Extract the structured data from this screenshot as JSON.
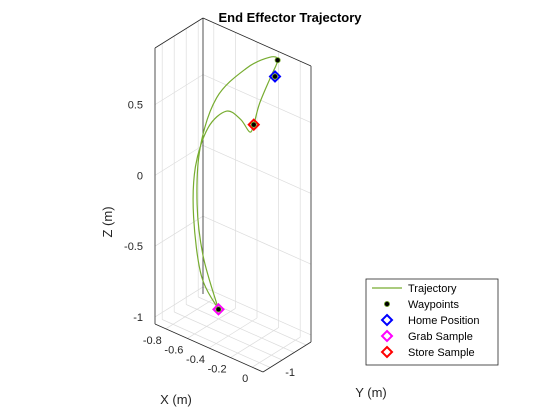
{
  "chart_data": {
    "type": "line3d",
    "title": "End Effector Trajectory",
    "xlabel": "X (m)",
    "ylabel": "Y (m)",
    "zlabel": "Z (m)",
    "xlim": [
      -0.9,
      0.1
    ],
    "ylim": [
      -1.8,
      0.2
    ],
    "zlim": [
      -1.05,
      0.9
    ],
    "xticks": [
      -0.8,
      -0.6,
      -0.4,
      -0.2,
      0
    ],
    "xtick_labels": [
      "-0.8",
      "-0.6",
      "-0.4",
      "-0.2",
      "0"
    ],
    "yticks": [
      -1
    ],
    "ytick_labels": [
      "-1"
    ],
    "zticks": [
      -1,
      -0.5,
      0,
      0.5
    ],
    "ztick_labels": [
      "-1",
      "-0.5",
      "0",
      "0.5"
    ],
    "grid": true,
    "legend_position": "bottom-right",
    "legend": [
      "Trajectory",
      "Waypoints",
      "Home Position",
      "Grab Sample",
      "Store Sample"
    ],
    "colors": {
      "trajectory": "#77ac30",
      "waypoints": "#000000",
      "home": "#0000ff",
      "grab": "#ff00ff",
      "store": "#ff0000"
    },
    "trajectory": [
      {
        "x": -0.61,
        "y": -0.46,
        "z": -0.99
      },
      {
        "x": -0.71,
        "y": -0.72,
        "z": -0.76
      },
      {
        "x": -0.76,
        "y": -0.82,
        "z": -0.35
      },
      {
        "x": -0.73,
        "y": -0.88,
        "z": 0.02
      },
      {
        "x": -0.62,
        "y": -0.85,
        "z": 0.33
      },
      {
        "x": -0.47,
        "y": -0.77,
        "z": 0.49
      },
      {
        "x": -0.36,
        "y": -0.67,
        "z": 0.46
      },
      {
        "x": -0.31,
        "y": -0.51,
        "z": 0.37
      },
      {
        "x": -0.29,
        "y": -0.43,
        "z": 0.42
      },
      {
        "x": -0.28,
        "y": -0.24,
        "z": 0.55
      },
      {
        "x": -0.23,
        "y": 0.0,
        "z": 0.73
      },
      {
        "x": -0.18,
        "y": 0.07,
        "z": 0.86
      },
      {
        "x": -0.2,
        "y": -0.18,
        "z": 0.9
      },
      {
        "x": -0.34,
        "y": -0.53,
        "z": 0.81
      },
      {
        "x": -0.54,
        "y": -0.85,
        "z": 0.57
      },
      {
        "x": -0.66,
        "y": -1.0,
        "z": 0.19
      },
      {
        "x": -0.69,
        "y": -0.99,
        "z": -0.22
      },
      {
        "x": -0.66,
        "y": -0.87,
        "z": -0.59
      },
      {
        "x": -0.61,
        "y": -0.46,
        "z": -0.99
      }
    ],
    "waypoints": [
      {
        "x": -0.61,
        "y": -0.46,
        "z": -0.99
      },
      {
        "x": -0.29,
        "y": -0.43,
        "z": 0.42
      },
      {
        "x": -0.18,
        "y": 0.07,
        "z": 0.86
      },
      {
        "x": -0.2,
        "y": 0.05,
        "z": 0.74
      }
    ],
    "home_position": {
      "x": -0.2,
      "y": 0.05,
      "z": 0.74
    },
    "grab_sample": {
      "x": -0.61,
      "y": -0.46,
      "z": -0.99
    },
    "store_sample": {
      "x": -0.29,
      "y": -0.43,
      "z": 0.42
    }
  }
}
